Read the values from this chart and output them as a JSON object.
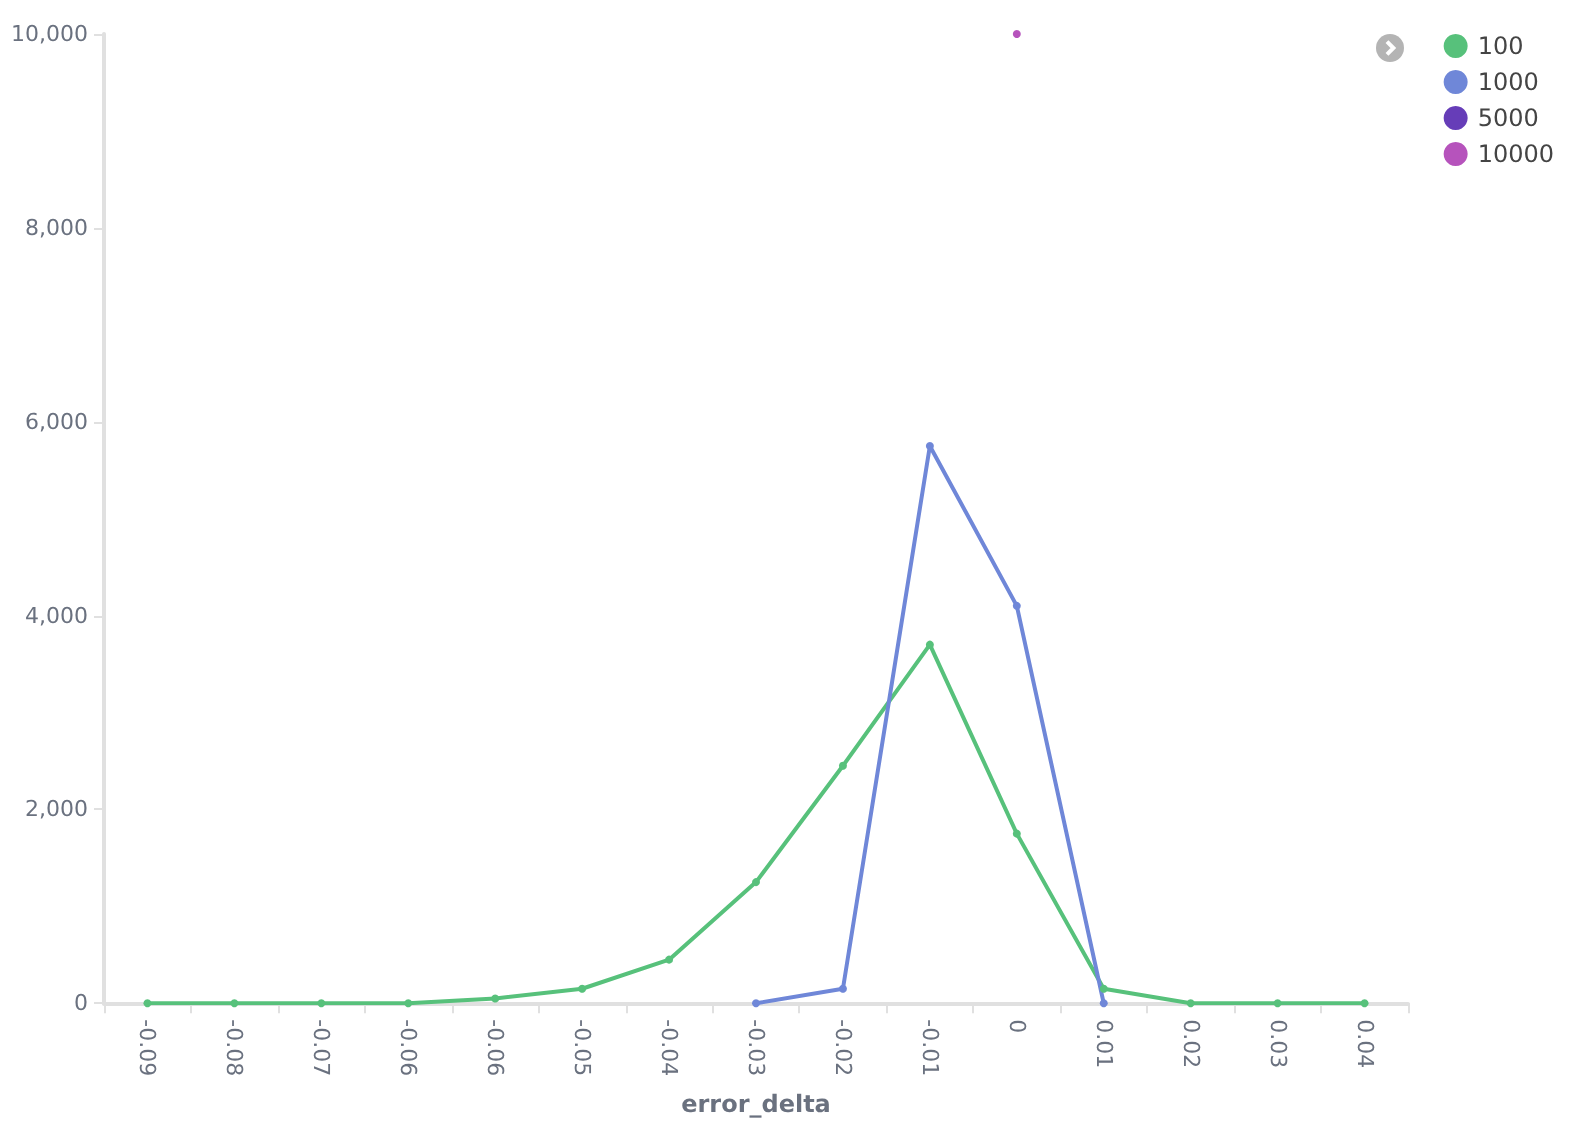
{
  "chart_data": {
    "type": "line",
    "xlabel": "error_delta",
    "categories": [
      "-0.09",
      "-0.08",
      "-0.07",
      "-0.06",
      "-0.06",
      "-0.05",
      "-0.04",
      "-0.03",
      "-0.02",
      "-0.01",
      "0",
      "0.01",
      "0.02",
      "0.03",
      "0.04"
    ],
    "series": [
      {
        "name": "100",
        "color": "#57c17b",
        "values": [
          0,
          0,
          0,
          0,
          50,
          150,
          450,
          1250,
          2450,
          3700,
          1750,
          150,
          0,
          0,
          0
        ]
      },
      {
        "name": "1000",
        "color": "#6f87d8",
        "values": [
          null,
          null,
          null,
          null,
          null,
          null,
          null,
          0,
          150,
          5750,
          4100,
          0,
          null,
          null,
          null
        ]
      },
      {
        "name": "5000",
        "color": "#663db8",
        "values": [
          null,
          null,
          null,
          null,
          null,
          null,
          null,
          null,
          null,
          null,
          null,
          null,
          null,
          null,
          null
        ]
      },
      {
        "name": "10000",
        "color": "#b653bc",
        "values": [
          null,
          null,
          null,
          null,
          null,
          null,
          null,
          null,
          null,
          null,
          10000,
          null,
          null,
          null,
          null
        ]
      }
    ],
    "ylim": [
      0,
      10000
    ],
    "yticks": [
      0,
      {
        "value": 2000,
        "label": "2,000"
      },
      {
        "value": 4000,
        "label": "4,000"
      },
      {
        "value": 6000,
        "label": "6,000"
      },
      {
        "value": 8000,
        "label": "8,000"
      },
      {
        "value": 10000,
        "label": "10,000"
      }
    ],
    "grid": false,
    "legend": "top right",
    "marker": "circle",
    "line_style": "solid"
  }
}
